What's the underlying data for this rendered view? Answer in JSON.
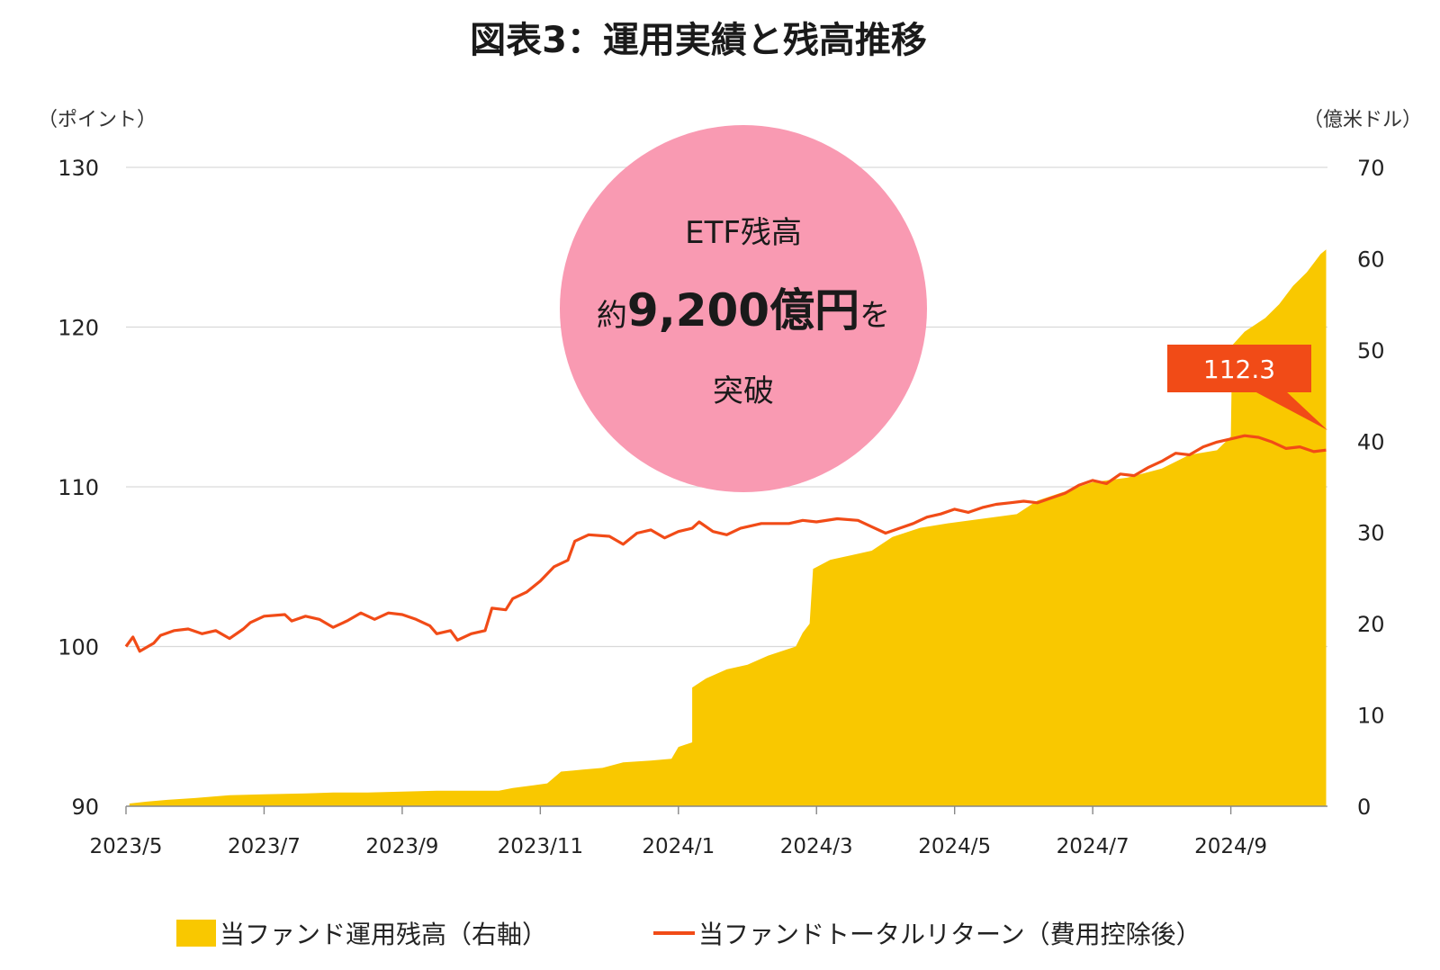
{
  "chart_data": {
    "type": "area+line",
    "title": "図表3：運用実績と残高推移",
    "left_axis": {
      "unit": "（ポイント）",
      "ylim": [
        90,
        130
      ],
      "ticks": [
        "130",
        "120",
        "110",
        "100",
        "90"
      ],
      "tick_values": [
        130,
        120,
        110,
        100,
        90
      ]
    },
    "right_axis": {
      "unit": "（億米ドル）",
      "ylim": [
        0,
        70
      ],
      "ticks": [
        "70",
        "60",
        "50",
        "40",
        "30",
        "20",
        "10",
        "0"
      ],
      "tick_values": [
        70,
        60,
        50,
        40,
        30,
        20,
        10,
        0
      ]
    },
    "x_axis": {
      "ticks": [
        "2023/5",
        "2023/7",
        "2023/9",
        "2023/11",
        "2024/1",
        "2024/3",
        "2024/5",
        "2024/7",
        "2024/9"
      ],
      "tick_months": [
        0,
        2,
        4,
        6,
        8,
        10,
        12,
        14,
        16
      ],
      "range_months": [
        0,
        17.4
      ]
    },
    "grid": "horizontal",
    "legend_position": "bottom",
    "series": [
      {
        "name": "当ファンド運用残高（右軸）",
        "type": "area",
        "axis": "right",
        "color": "#F9C800",
        "points": [
          [
            0.05,
            0.3
          ],
          [
            0.3,
            0.5
          ],
          [
            0.6,
            0.7
          ],
          [
            1.0,
            0.9
          ],
          [
            1.5,
            1.2
          ],
          [
            2.0,
            1.3
          ],
          [
            2.6,
            1.4
          ],
          [
            3.0,
            1.5
          ],
          [
            3.5,
            1.5
          ],
          [
            4.0,
            1.6
          ],
          [
            4.5,
            1.7
          ],
          [
            5.0,
            1.7
          ],
          [
            5.4,
            1.7
          ],
          [
            5.6,
            2.0
          ],
          [
            5.9,
            2.3
          ],
          [
            6.1,
            2.5
          ],
          [
            6.3,
            3.8
          ],
          [
            6.6,
            4.0
          ],
          [
            6.9,
            4.2
          ],
          [
            7.2,
            4.8
          ],
          [
            7.6,
            5.0
          ],
          [
            7.9,
            5.2
          ],
          [
            8.0,
            6.5
          ],
          [
            8.2,
            7.0
          ],
          [
            8.2,
            13.0
          ],
          [
            8.4,
            14.0
          ],
          [
            8.7,
            15.0
          ],
          [
            9.0,
            15.5
          ],
          [
            9.3,
            16.5
          ],
          [
            9.7,
            17.5
          ],
          [
            9.8,
            19.0
          ],
          [
            9.9,
            20.0
          ],
          [
            9.95,
            26.0
          ],
          [
            10.2,
            27.0
          ],
          [
            10.5,
            27.5
          ],
          [
            10.8,
            28.0
          ],
          [
            11.1,
            29.5
          ],
          [
            11.5,
            30.5
          ],
          [
            11.9,
            31.0
          ],
          [
            12.4,
            31.5
          ],
          [
            12.9,
            32.0
          ],
          [
            13.2,
            33.5
          ],
          [
            13.6,
            34.5
          ],
          [
            14.0,
            35.5
          ],
          [
            14.5,
            36.0
          ],
          [
            15.0,
            37.0
          ],
          [
            15.4,
            38.5
          ],
          [
            15.8,
            39.0
          ],
          [
            16.0,
            40.5
          ],
          [
            16.02,
            50.5
          ],
          [
            16.2,
            52.0
          ],
          [
            16.5,
            53.5
          ],
          [
            16.7,
            55.0
          ],
          [
            16.9,
            57.0
          ],
          [
            17.1,
            58.5
          ],
          [
            17.3,
            60.5
          ],
          [
            17.38,
            61.0
          ]
        ]
      },
      {
        "name": "当ファンドトータルリターン（費用控除後）",
        "type": "line",
        "axis": "left",
        "color": "#F14B17",
        "points": [
          [
            0.0,
            100.0
          ],
          [
            0.1,
            100.6
          ],
          [
            0.2,
            99.7
          ],
          [
            0.4,
            100.2
          ],
          [
            0.5,
            100.7
          ],
          [
            0.7,
            101.0
          ],
          [
            0.9,
            101.1
          ],
          [
            1.1,
            100.8
          ],
          [
            1.3,
            101.0
          ],
          [
            1.5,
            100.5
          ],
          [
            1.7,
            101.1
          ],
          [
            1.8,
            101.5
          ],
          [
            2.0,
            101.9
          ],
          [
            2.3,
            102.0
          ],
          [
            2.4,
            101.6
          ],
          [
            2.6,
            101.9
          ],
          [
            2.8,
            101.7
          ],
          [
            3.0,
            101.2
          ],
          [
            3.2,
            101.6
          ],
          [
            3.4,
            102.1
          ],
          [
            3.6,
            101.7
          ],
          [
            3.8,
            102.1
          ],
          [
            4.0,
            102.0
          ],
          [
            4.2,
            101.7
          ],
          [
            4.4,
            101.3
          ],
          [
            4.5,
            100.8
          ],
          [
            4.7,
            101.0
          ],
          [
            4.8,
            100.4
          ],
          [
            5.0,
            100.8
          ],
          [
            5.2,
            101.0
          ],
          [
            5.3,
            102.4
          ],
          [
            5.5,
            102.3
          ],
          [
            5.6,
            103.0
          ],
          [
            5.8,
            103.4
          ],
          [
            6.0,
            104.1
          ],
          [
            6.2,
            105.0
          ],
          [
            6.4,
            105.4
          ],
          [
            6.5,
            106.6
          ],
          [
            6.7,
            107.0
          ],
          [
            7.0,
            106.9
          ],
          [
            7.2,
            106.4
          ],
          [
            7.4,
            107.1
          ],
          [
            7.6,
            107.3
          ],
          [
            7.8,
            106.8
          ],
          [
            8.0,
            107.2
          ],
          [
            8.2,
            107.4
          ],
          [
            8.3,
            107.8
          ],
          [
            8.5,
            107.2
          ],
          [
            8.7,
            107.0
          ],
          [
            8.9,
            107.4
          ],
          [
            9.2,
            107.7
          ],
          [
            9.4,
            107.7
          ],
          [
            9.6,
            107.7
          ],
          [
            9.8,
            107.9
          ],
          [
            10.0,
            107.8
          ],
          [
            10.3,
            108.0
          ],
          [
            10.6,
            107.9
          ],
          [
            10.8,
            107.5
          ],
          [
            11.0,
            107.1
          ],
          [
            11.2,
            107.4
          ],
          [
            11.4,
            107.7
          ],
          [
            11.6,
            108.1
          ],
          [
            11.8,
            108.3
          ],
          [
            12.0,
            108.6
          ],
          [
            12.2,
            108.4
          ],
          [
            12.4,
            108.7
          ],
          [
            12.6,
            108.9
          ],
          [
            12.8,
            109.0
          ],
          [
            13.0,
            109.1
          ],
          [
            13.2,
            109.0
          ],
          [
            13.4,
            109.3
          ],
          [
            13.6,
            109.6
          ],
          [
            13.8,
            110.1
          ],
          [
            14.0,
            110.4
          ],
          [
            14.2,
            110.2
          ],
          [
            14.4,
            110.8
          ],
          [
            14.6,
            110.7
          ],
          [
            14.8,
            111.2
          ],
          [
            15.0,
            111.6
          ],
          [
            15.2,
            112.1
          ],
          [
            15.4,
            112.0
          ],
          [
            15.6,
            112.5
          ],
          [
            15.8,
            112.8
          ],
          [
            16.0,
            113.0
          ],
          [
            16.2,
            113.2
          ],
          [
            16.4,
            113.1
          ],
          [
            16.6,
            112.8
          ],
          [
            16.8,
            112.4
          ],
          [
            17.0,
            112.5
          ],
          [
            17.2,
            112.2
          ],
          [
            17.38,
            112.3
          ]
        ]
      }
    ],
    "annotations": [
      {
        "kind": "bubble",
        "color": "#F99AB2",
        "line1": "ETF残高",
        "prefix": "約",
        "big": "9,200億円",
        "suffix": "を",
        "line3": "突破"
      },
      {
        "kind": "callout",
        "color": "#F14B17",
        "text": "112.3",
        "target_x_month": 17.38,
        "target_value": 112.3
      }
    ]
  }
}
